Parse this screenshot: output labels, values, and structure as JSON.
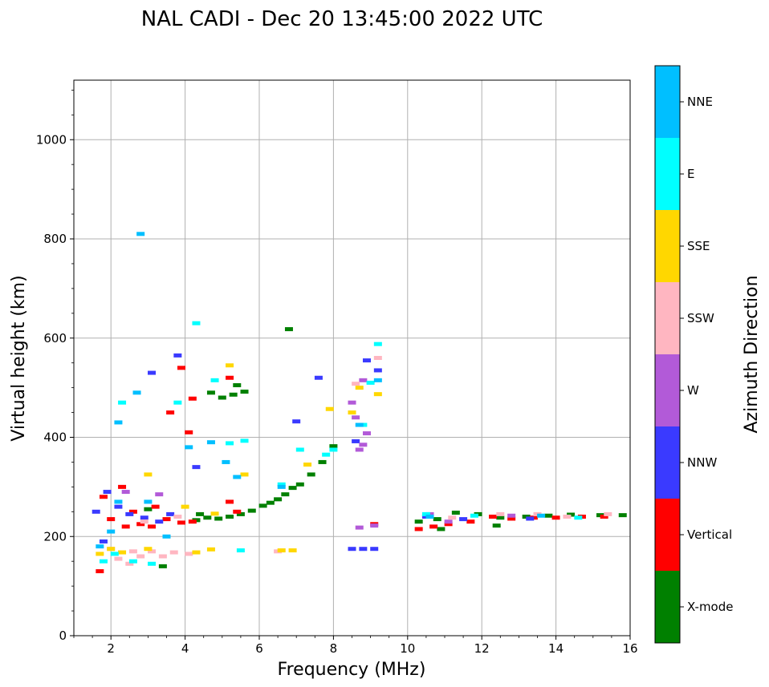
{
  "chart_data": {
    "type": "scatter",
    "title": "NAL CADI - Dec 20 13:45:00 2022 UTC",
    "xlabel": "Frequency (MHz)",
    "ylabel": "Virtual height (km)",
    "xlim": [
      1,
      16
    ],
    "ylim": [
      0,
      1120
    ],
    "xticks": [
      2,
      4,
      6,
      8,
      10,
      12,
      14,
      16
    ],
    "yticks": [
      0,
      200,
      400,
      600,
      800,
      1000
    ],
    "grid": true,
    "colorbar": {
      "label": "Azimuth Direction",
      "categories": [
        {
          "name": "X-mode",
          "color": "#008000"
        },
        {
          "name": "Vertical",
          "color": "#ff0000"
        },
        {
          "name": "NNW",
          "color": "#3a3aff"
        },
        {
          "name": "W",
          "color": "#b25ad8"
        },
        {
          "name": "SSW",
          "color": "#ffb6c1"
        },
        {
          "name": "SSE",
          "color": "#ffd700"
        },
        {
          "name": "E",
          "color": "#00ffff"
        },
        {
          "name": "NNE",
          "color": "#00bfff"
        }
      ]
    },
    "series": [
      {
        "name": "X-mode",
        "points": [
          [
            4.3,
            233
          ],
          [
            4.6,
            238
          ],
          [
            4.9,
            236
          ],
          [
            5.2,
            240
          ],
          [
            5.5,
            245
          ],
          [
            5.8,
            252
          ],
          [
            6.1,
            262
          ],
          [
            6.3,
            268
          ],
          [
            6.5,
            275
          ],
          [
            6.7,
            285
          ],
          [
            6.9,
            298
          ],
          [
            7.1,
            305
          ],
          [
            7.4,
            325
          ],
          [
            7.7,
            350
          ],
          [
            8.0,
            382
          ],
          [
            4.7,
            490
          ],
          [
            5.0,
            480
          ],
          [
            5.3,
            486
          ],
          [
            5.6,
            492
          ],
          [
            6.8,
            618
          ],
          [
            3.4,
            140
          ],
          [
            10.3,
            230
          ],
          [
            10.8,
            235
          ],
          [
            11.3,
            248
          ],
          [
            11.9,
            245
          ],
          [
            12.5,
            238
          ],
          [
            13.2,
            240
          ],
          [
            13.8,
            242
          ],
          [
            14.4,
            244
          ],
          [
            15.2,
            243
          ],
          [
            15.8,
            243
          ],
          [
            12.4,
            222
          ],
          [
            10.9,
            215
          ],
          [
            4.4,
            245
          ],
          [
            5.4,
            505
          ],
          [
            3.0,
            255
          ]
        ]
      },
      {
        "name": "Vertical",
        "points": [
          [
            1.7,
            130
          ],
          [
            2.0,
            235
          ],
          [
            2.4,
            220
          ],
          [
            2.8,
            225
          ],
          [
            3.1,
            220
          ],
          [
            3.5,
            235
          ],
          [
            3.9,
            228
          ],
          [
            4.2,
            230
          ],
          [
            5.2,
            270
          ],
          [
            5.4,
            250
          ],
          [
            10.3,
            215
          ],
          [
            10.7,
            220
          ],
          [
            11.1,
            225
          ],
          [
            11.7,
            230
          ],
          [
            12.3,
            240
          ],
          [
            12.8,
            236
          ],
          [
            13.4,
            238
          ],
          [
            14.0,
            238
          ],
          [
            14.7,
            240
          ],
          [
            15.3,
            240
          ],
          [
            3.6,
            450
          ],
          [
            3.9,
            540
          ],
          [
            4.1,
            410
          ],
          [
            5.2,
            520
          ],
          [
            2.3,
            300
          ],
          [
            2.6,
            250
          ],
          [
            3.2,
            260
          ],
          [
            9.1,
            225
          ],
          [
            1.8,
            280
          ],
          [
            4.2,
            478
          ]
        ]
      },
      {
        "name": "NNW",
        "points": [
          [
            1.6,
            250
          ],
          [
            1.9,
            290
          ],
          [
            2.2,
            260
          ],
          [
            2.5,
            245
          ],
          [
            2.9,
            238
          ],
          [
            3.3,
            230
          ],
          [
            3.6,
            245
          ],
          [
            4.3,
            340
          ],
          [
            7.6,
            520
          ],
          [
            7.0,
            432
          ],
          [
            8.6,
            392
          ],
          [
            8.9,
            555
          ],
          [
            9.2,
            535
          ],
          [
            8.5,
            175
          ],
          [
            8.8,
            175
          ],
          [
            9.1,
            175
          ],
          [
            3.8,
            565
          ],
          [
            3.1,
            530
          ],
          [
            1.8,
            190
          ],
          [
            10.5,
            240
          ],
          [
            11.5,
            235
          ],
          [
            13.3,
            236
          ]
        ]
      },
      {
        "name": "W",
        "points": [
          [
            8.7,
            375
          ],
          [
            8.9,
            408
          ],
          [
            8.6,
            440
          ],
          [
            8.8,
            515
          ],
          [
            9.1,
            222
          ],
          [
            8.7,
            218
          ],
          [
            8.5,
            470
          ],
          [
            8.8,
            385
          ],
          [
            2.4,
            290
          ],
          [
            3.3,
            285
          ],
          [
            11.1,
            230
          ],
          [
            12.8,
            242
          ],
          [
            10.6,
            245
          ]
        ]
      },
      {
        "name": "SSW",
        "points": [
          [
            2.2,
            155
          ],
          [
            2.5,
            145
          ],
          [
            2.8,
            160
          ],
          [
            3.1,
            170
          ],
          [
            3.4,
            160
          ],
          [
            3.7,
            168
          ],
          [
            4.1,
            165
          ],
          [
            2.0,
            175
          ],
          [
            8.6,
            508
          ],
          [
            9.2,
            560
          ],
          [
            11.2,
            238
          ],
          [
            12.5,
            245
          ],
          [
            13.5,
            245
          ],
          [
            14.3,
            240
          ],
          [
            15.4,
            245
          ],
          [
            6.5,
            170
          ],
          [
            2.9,
            230
          ],
          [
            3.8,
            240
          ],
          [
            2.6,
            170
          ]
        ]
      },
      {
        "name": "SSE",
        "points": [
          [
            1.7,
            165
          ],
          [
            2.0,
            175
          ],
          [
            2.3,
            168
          ],
          [
            3.0,
            175
          ],
          [
            4.3,
            168
          ],
          [
            4.7,
            174
          ],
          [
            5.2,
            545
          ],
          [
            5.6,
            325
          ],
          [
            6.6,
            172
          ],
          [
            6.9,
            172
          ],
          [
            7.3,
            345
          ],
          [
            7.9,
            457
          ],
          [
            8.5,
            450
          ],
          [
            8.7,
            500
          ],
          [
            9.2,
            487
          ],
          [
            3.0,
            325
          ],
          [
            4.0,
            260
          ],
          [
            4.8,
            246
          ]
        ]
      },
      {
        "name": "E",
        "points": [
          [
            1.8,
            150
          ],
          [
            2.1,
            165
          ],
          [
            2.6,
            150
          ],
          [
            3.1,
            145
          ],
          [
            4.3,
            630
          ],
          [
            5.6,
            393
          ],
          [
            5.2,
            388
          ],
          [
            7.8,
            365
          ],
          [
            8.0,
            375
          ],
          [
            8.8,
            425
          ],
          [
            9.0,
            510
          ],
          [
            9.2,
            588
          ],
          [
            6.6,
            305
          ],
          [
            7.1,
            375
          ],
          [
            2.3,
            470
          ],
          [
            3.8,
            470
          ],
          [
            5.5,
            172
          ],
          [
            10.5,
            245
          ],
          [
            11.8,
            242
          ],
          [
            14.6,
            238
          ],
          [
            4.8,
            515
          ]
        ]
      },
      {
        "name": "NNE",
        "points": [
          [
            1.7,
            180
          ],
          [
            2.2,
            270
          ],
          [
            2.7,
            490
          ],
          [
            3.5,
            200
          ],
          [
            4.1,
            380
          ],
          [
            4.7,
            390
          ],
          [
            5.1,
            350
          ],
          [
            5.4,
            320
          ],
          [
            6.6,
            300
          ],
          [
            8.7,
            425
          ],
          [
            9.2,
            515
          ],
          [
            10.6,
            240
          ],
          [
            13.6,
            242
          ],
          [
            2.0,
            210
          ],
          [
            3.0,
            270
          ],
          [
            2.2,
            430
          ],
          [
            2.8,
            810
          ]
        ]
      }
    ]
  }
}
